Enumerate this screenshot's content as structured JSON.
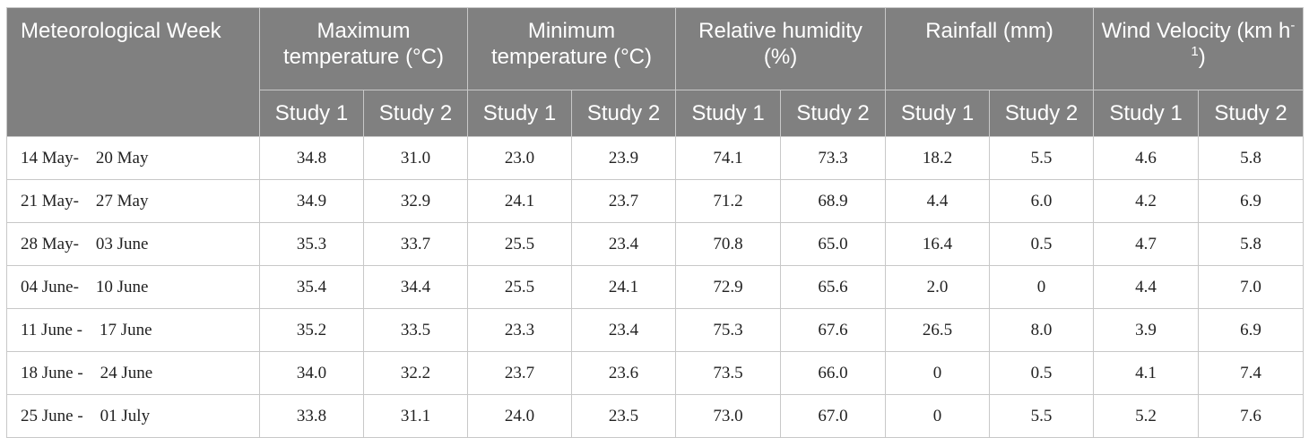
{
  "table": {
    "header": {
      "week_label": "Meteorological Week",
      "groups": [
        "Maximum temperature (°C)",
        "Minimum temperature (°C)",
        "Relative humidity (%)",
        "Rainfall (mm)"
      ],
      "wind_label": "Wind Velocity (km h",
      "wind_exponent": "-1",
      "wind_close": ")",
      "study_labels": [
        "Study 1",
        "Study 2"
      ]
    },
    "rows": [
      [
        "14 May-    20 May",
        "34.8",
        "31.0",
        "23.0",
        "23.9",
        "74.1",
        "73.3",
        "18.2",
        "5.5",
        "4.6",
        "5.8"
      ],
      [
        "21 May-    27 May",
        "34.9",
        "32.9",
        "24.1",
        "23.7",
        "71.2",
        "68.9",
        "4.4",
        "6.0",
        "4.2",
        "6.9"
      ],
      [
        "28 May-    03 June",
        "35.3",
        "33.7",
        "25.5",
        "23.4",
        "70.8",
        "65.0",
        "16.4",
        "0.5",
        "4.7",
        "5.8"
      ],
      [
        "04 June-    10 June",
        "35.4",
        "34.4",
        "25.5",
        "24.1",
        "72.9",
        "65.6",
        "2.0",
        "0",
        "4.4",
        "7.0"
      ],
      [
        "11 June -    17 June",
        "35.2",
        "33.5",
        "23.3",
        "23.4",
        "75.3",
        "67.6",
        "26.5",
        "8.0",
        "3.9",
        "6.9"
      ],
      [
        "18 June -    24 June",
        "34.0",
        "32.2",
        "23.7",
        "23.6",
        "73.5",
        "66.0",
        "0",
        "0.5",
        "4.1",
        "7.4"
      ],
      [
        "25 June -    01 July",
        "33.8",
        "31.1",
        "24.0",
        "23.5",
        "73.0",
        "67.0",
        "0",
        "5.5",
        "5.2",
        "7.6"
      ]
    ]
  }
}
